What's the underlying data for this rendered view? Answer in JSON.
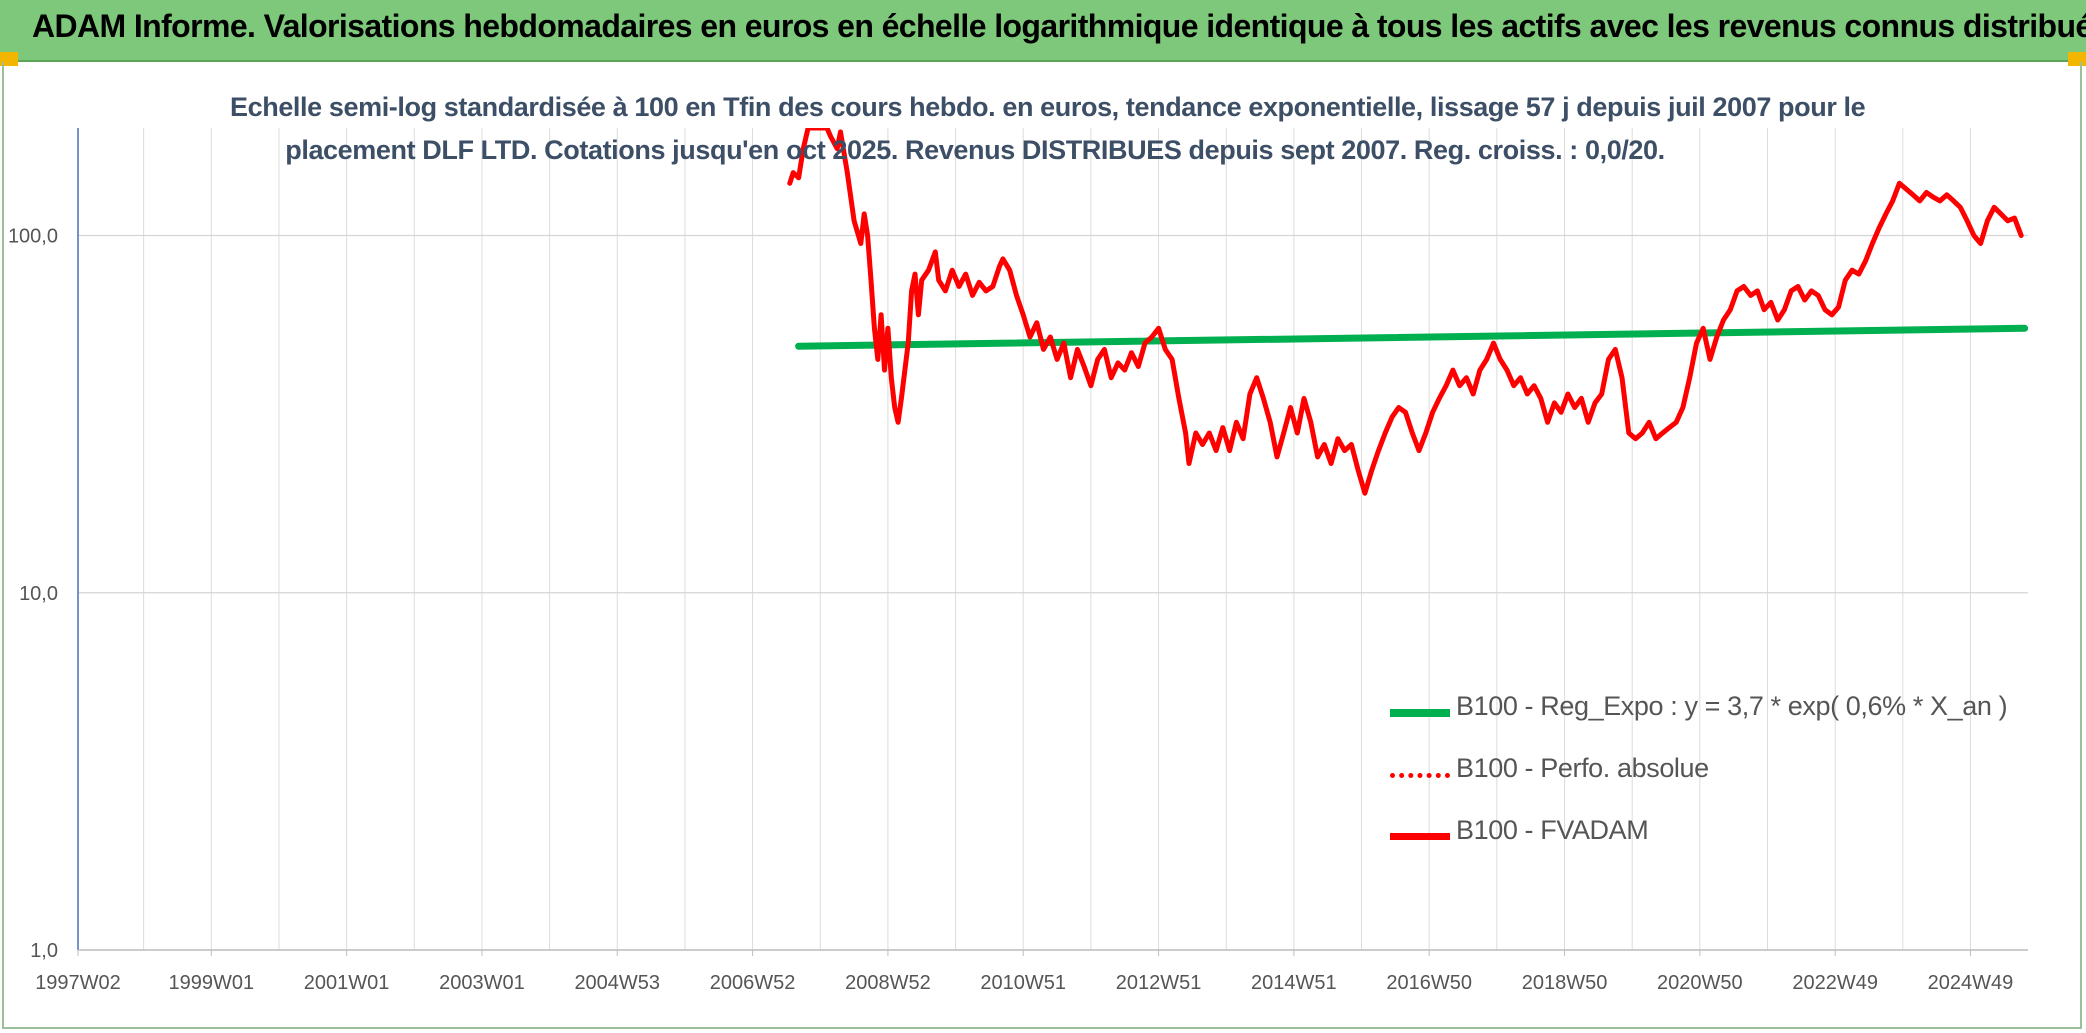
{
  "header": {
    "title": "ADAM Informe. Valorisations hebdomadaires en euros en échelle logarithmique identique à tous les actifs avec les revenus connus distribués",
    "accent_color": "#7dc87a"
  },
  "chart_data": {
    "type": "line",
    "title_lines": [
      "Echelle semi-log standardisée à 100 en Tfin des cours hebdo. en euros, tendance exponentielle, lissage 57 j depuis juil 2007 pour le",
      "placement DLF LTD. Cotations jusqu'en oct 2025. Revenus DISTRIBUES depuis sept 2007. Reg. croiss. : 0,0/20."
    ],
    "y_scale": "log",
    "ylim": [
      1,
      200
    ],
    "y_ticks": [
      {
        "value": 1,
        "label": "1,0"
      },
      {
        "value": 10,
        "label": "10,0"
      },
      {
        "value": 100,
        "label": "100,0"
      }
    ],
    "xlim": [
      1997.03,
      2025.85
    ],
    "x_ticks": [
      {
        "value": 1997.03,
        "label": "1997W02"
      },
      {
        "value": 1999.0,
        "label": "1999W01"
      },
      {
        "value": 2001.0,
        "label": "2001W01"
      },
      {
        "value": 2003.0,
        "label": "2003W01"
      },
      {
        "value": 2005.0,
        "label": "2004W53"
      },
      {
        "value": 2007.0,
        "label": "2006W52"
      },
      {
        "value": 2009.0,
        "label": "2008W52"
      },
      {
        "value": 2011.0,
        "label": "2010W51"
      },
      {
        "value": 2013.0,
        "label": "2012W51"
      },
      {
        "value": 2015.0,
        "label": "2014W51"
      },
      {
        "value": 2017.0,
        "label": "2016W50"
      },
      {
        "value": 2019.0,
        "label": "2018W50"
      },
      {
        "value": 2021.0,
        "label": "2020W50"
      },
      {
        "value": 2023.0,
        "label": "2022W49"
      },
      {
        "value": 2025.0,
        "label": "2024W49"
      }
    ],
    "grid": true,
    "legend_position": "lower-right",
    "series": [
      {
        "name": "B100 - Reg_Expo : y = 3,7 * exp( 0,6% *  X_an )",
        "color": "#00b050",
        "style": "solid",
        "points": [
          [
            2007.68,
            49
          ],
          [
            2025.8,
            55
          ]
        ]
      },
      {
        "name": "B100 - Perfo. absolue",
        "color": "#ff0000",
        "style": "dotted",
        "points": []
      },
      {
        "name": "B100 - FVADAM",
        "color": "#ff0000",
        "style": "solid",
        "points": [
          [
            2007.55,
            140
          ],
          [
            2007.6,
            150
          ],
          [
            2007.68,
            145
          ],
          [
            2007.75,
            175
          ],
          [
            2007.82,
            200
          ],
          [
            2008.0,
            200
          ],
          [
            2008.1,
            200
          ],
          [
            2008.15,
            190
          ],
          [
            2008.25,
            175
          ],
          [
            2008.3,
            195
          ],
          [
            2008.4,
            150
          ],
          [
            2008.5,
            110
          ],
          [
            2008.6,
            95
          ],
          [
            2008.65,
            115
          ],
          [
            2008.7,
            100
          ],
          [
            2008.75,
            75
          ],
          [
            2008.8,
            55
          ],
          [
            2008.85,
            45
          ],
          [
            2008.9,
            60
          ],
          [
            2008.95,
            42
          ],
          [
            2009.0,
            55
          ],
          [
            2009.05,
            40
          ],
          [
            2009.1,
            33
          ],
          [
            2009.15,
            30
          ],
          [
            2009.2,
            35
          ],
          [
            2009.3,
            50
          ],
          [
            2009.35,
            70
          ],
          [
            2009.4,
            78
          ],
          [
            2009.45,
            60
          ],
          [
            2009.5,
            75
          ],
          [
            2009.6,
            80
          ],
          [
            2009.7,
            90
          ],
          [
            2009.75,
            75
          ],
          [
            2009.85,
            70
          ],
          [
            2009.95,
            80
          ],
          [
            2010.05,
            72
          ],
          [
            2010.15,
            78
          ],
          [
            2010.25,
            68
          ],
          [
            2010.35,
            74
          ],
          [
            2010.45,
            70
          ],
          [
            2010.55,
            72
          ],
          [
            2010.65,
            82
          ],
          [
            2010.7,
            86
          ],
          [
            2010.8,
            80
          ],
          [
            2010.9,
            68
          ],
          [
            2011.0,
            60
          ],
          [
            2011.1,
            52
          ],
          [
            2011.2,
            57
          ],
          [
            2011.3,
            48
          ],
          [
            2011.4,
            52
          ],
          [
            2011.5,
            45
          ],
          [
            2011.6,
            50
          ],
          [
            2011.7,
            40
          ],
          [
            2011.8,
            48
          ],
          [
            2011.9,
            43
          ],
          [
            2012.0,
            38
          ],
          [
            2012.1,
            45
          ],
          [
            2012.2,
            48
          ],
          [
            2012.3,
            40
          ],
          [
            2012.4,
            44
          ],
          [
            2012.5,
            42
          ],
          [
            2012.6,
            47
          ],
          [
            2012.7,
            43
          ],
          [
            2012.8,
            50
          ],
          [
            2012.9,
            52
          ],
          [
            2013.0,
            55
          ],
          [
            2013.1,
            48
          ],
          [
            2013.2,
            45
          ],
          [
            2013.3,
            35
          ],
          [
            2013.4,
            28
          ],
          [
            2013.45,
            23
          ],
          [
            2013.55,
            28
          ],
          [
            2013.65,
            26
          ],
          [
            2013.75,
            28
          ],
          [
            2013.85,
            25
          ],
          [
            2013.95,
            29
          ],
          [
            2014.05,
            25
          ],
          [
            2014.15,
            30
          ],
          [
            2014.25,
            27
          ],
          [
            2014.35,
            36
          ],
          [
            2014.45,
            40
          ],
          [
            2014.55,
            35
          ],
          [
            2014.65,
            30
          ],
          [
            2014.75,
            24
          ],
          [
            2014.85,
            28
          ],
          [
            2014.95,
            33
          ],
          [
            2015.05,
            28
          ],
          [
            2015.15,
            35
          ],
          [
            2015.25,
            30
          ],
          [
            2015.35,
            24
          ],
          [
            2015.45,
            26
          ],
          [
            2015.55,
            23
          ],
          [
            2015.65,
            27
          ],
          [
            2015.75,
            25
          ],
          [
            2015.85,
            26
          ],
          [
            2015.95,
            22
          ],
          [
            2016.05,
            19
          ],
          [
            2016.15,
            22
          ],
          [
            2016.25,
            25
          ],
          [
            2016.35,
            28
          ],
          [
            2016.45,
            31
          ],
          [
            2016.55,
            33
          ],
          [
            2016.65,
            32
          ],
          [
            2016.75,
            28
          ],
          [
            2016.85,
            25
          ],
          [
            2016.95,
            28
          ],
          [
            2017.05,
            32
          ],
          [
            2017.15,
            35
          ],
          [
            2017.25,
            38
          ],
          [
            2017.35,
            42
          ],
          [
            2017.45,
            38
          ],
          [
            2017.55,
            40
          ],
          [
            2017.65,
            36
          ],
          [
            2017.75,
            42
          ],
          [
            2017.85,
            45
          ],
          [
            2017.95,
            50
          ],
          [
            2018.05,
            45
          ],
          [
            2018.15,
            42
          ],
          [
            2018.25,
            38
          ],
          [
            2018.35,
            40
          ],
          [
            2018.45,
            36
          ],
          [
            2018.55,
            38
          ],
          [
            2018.65,
            35
          ],
          [
            2018.75,
            30
          ],
          [
            2018.85,
            34
          ],
          [
            2018.95,
            32
          ],
          [
            2019.05,
            36
          ],
          [
            2019.15,
            33
          ],
          [
            2019.25,
            35
          ],
          [
            2019.35,
            30
          ],
          [
            2019.45,
            34
          ],
          [
            2019.55,
            36
          ],
          [
            2019.65,
            45
          ],
          [
            2019.75,
            48
          ],
          [
            2019.85,
            40
          ],
          [
            2019.95,
            28
          ],
          [
            2020.05,
            27
          ],
          [
            2020.15,
            28
          ],
          [
            2020.25,
            30
          ],
          [
            2020.35,
            27
          ],
          [
            2020.45,
            28
          ],
          [
            2020.55,
            29
          ],
          [
            2020.65,
            30
          ],
          [
            2020.75,
            33
          ],
          [
            2020.85,
            40
          ],
          [
            2020.95,
            50
          ],
          [
            2021.05,
            55
          ],
          [
            2021.15,
            45
          ],
          [
            2021.25,
            52
          ],
          [
            2021.35,
            58
          ],
          [
            2021.45,
            62
          ],
          [
            2021.55,
            70
          ],
          [
            2021.65,
            72
          ],
          [
            2021.75,
            68
          ],
          [
            2021.85,
            70
          ],
          [
            2021.95,
            62
          ],
          [
            2022.05,
            65
          ],
          [
            2022.15,
            58
          ],
          [
            2022.25,
            62
          ],
          [
            2022.35,
            70
          ],
          [
            2022.45,
            72
          ],
          [
            2022.55,
            66
          ],
          [
            2022.65,
            70
          ],
          [
            2022.75,
            68
          ],
          [
            2022.85,
            62
          ],
          [
            2022.95,
            60
          ],
          [
            2023.05,
            63
          ],
          [
            2023.15,
            75
          ],
          [
            2023.25,
            80
          ],
          [
            2023.35,
            78
          ],
          [
            2023.45,
            85
          ],
          [
            2023.55,
            95
          ],
          [
            2023.65,
            105
          ],
          [
            2023.75,
            115
          ],
          [
            2023.85,
            125
          ],
          [
            2023.95,
            140
          ],
          [
            2024.05,
            135
          ],
          [
            2024.15,
            130
          ],
          [
            2024.25,
            125
          ],
          [
            2024.35,
            132
          ],
          [
            2024.45,
            128
          ],
          [
            2024.55,
            125
          ],
          [
            2024.65,
            130
          ],
          [
            2024.75,
            125
          ],
          [
            2024.85,
            120
          ],
          [
            2024.95,
            110
          ],
          [
            2025.05,
            100
          ],
          [
            2025.15,
            95
          ],
          [
            2025.25,
            110
          ],
          [
            2025.35,
            120
          ],
          [
            2025.45,
            115
          ],
          [
            2025.55,
            110
          ],
          [
            2025.65,
            112
          ],
          [
            2025.75,
            100
          ]
        ]
      }
    ]
  }
}
